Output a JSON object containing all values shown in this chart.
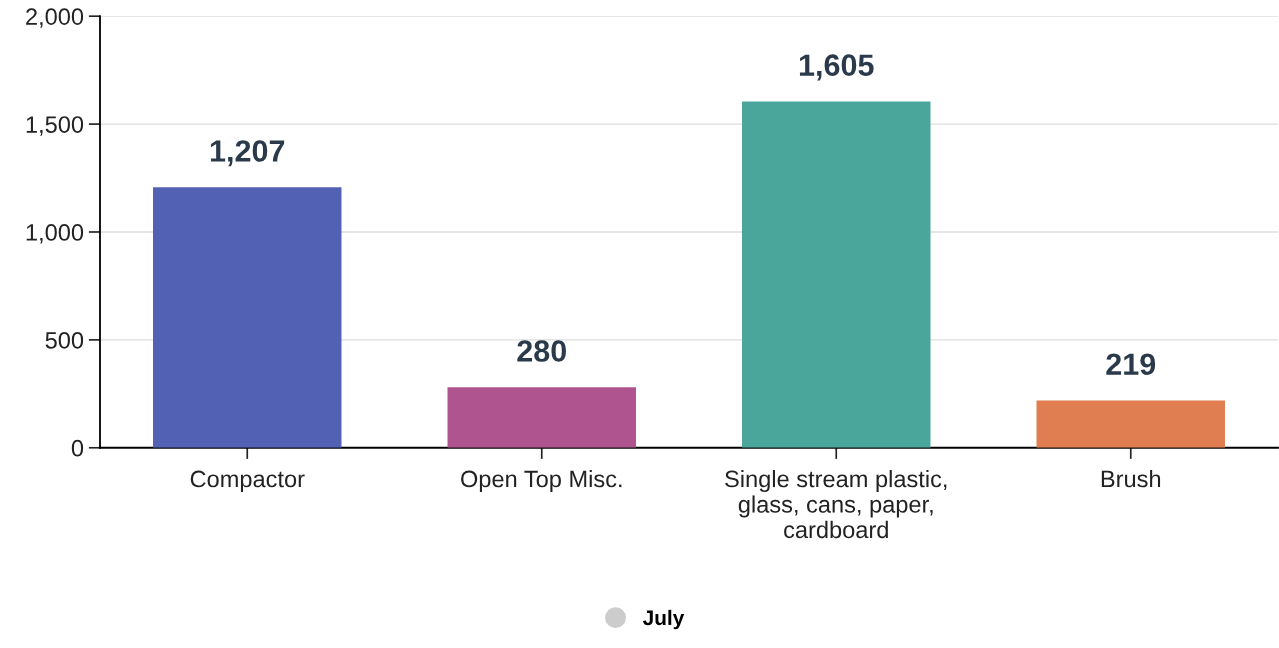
{
  "chart_data": {
    "type": "bar",
    "categories": [
      "Compactor",
      "Open Top Misc.",
      "Single stream plastic,\nglass, cans, paper,\ncardboard",
      "Brush"
    ],
    "series": [
      {
        "name": "July",
        "color": "#cccccc",
        "colors": [
          "#5361b5",
          "#b0548f",
          "#4aa59a",
          "#e07e52"
        ],
        "values": [
          1207,
          280,
          1605,
          219
        ],
        "value_labels": [
          "1,207",
          "280",
          "1,605",
          "219"
        ]
      }
    ],
    "ylim": [
      0,
      2000
    ],
    "yticks": [
      {
        "value": 0,
        "label": "0"
      },
      {
        "value": 500,
        "label": "500"
      },
      {
        "value": 1000,
        "label": "1,000"
      },
      {
        "value": 1500,
        "label": "1,500"
      },
      {
        "value": 2000,
        "label": "2,000"
      }
    ],
    "grid": "y",
    "legend": "bottom"
  }
}
